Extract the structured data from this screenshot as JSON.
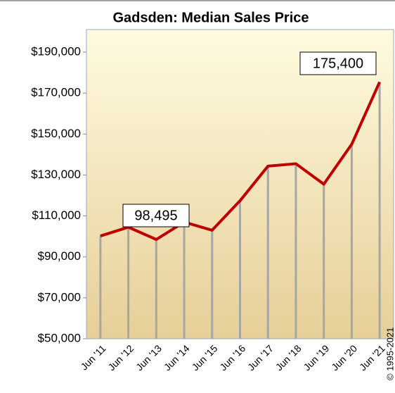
{
  "chart_data": {
    "type": "line",
    "title": "Gadsden: Median Sales Price",
    "categories": [
      "Jun '11",
      "Jun '12",
      "Jun '13",
      "Jun '14",
      "Jun '15",
      "Jun '16",
      "Jun '17",
      "Jun '18",
      "Jun '19",
      "Jun '20",
      "Jun '21"
    ],
    "values": [
      100200,
      104500,
      98495,
      107000,
      103000,
      117400,
      134300,
      135500,
      125500,
      145000,
      175400
    ],
    "color": "#c00000",
    "ylim": [
      50000,
      190000
    ],
    "yticks": [
      {
        "value": 50000,
        "label": "$50,000"
      },
      {
        "value": 70000,
        "label": "$70,000"
      },
      {
        "value": 90000,
        "label": "$90,000"
      },
      {
        "value": 110000,
        "label": "$110,000"
      },
      {
        "value": 130000,
        "label": "$130,000"
      },
      {
        "value": 150000,
        "label": "$150,000"
      },
      {
        "value": 170000,
        "label": "$170,000"
      },
      {
        "value": 190000,
        "label": "$190,000"
      }
    ],
    "annotations": [
      "98,495",
      "175,400"
    ],
    "copyright": "© 1995-2021"
  }
}
